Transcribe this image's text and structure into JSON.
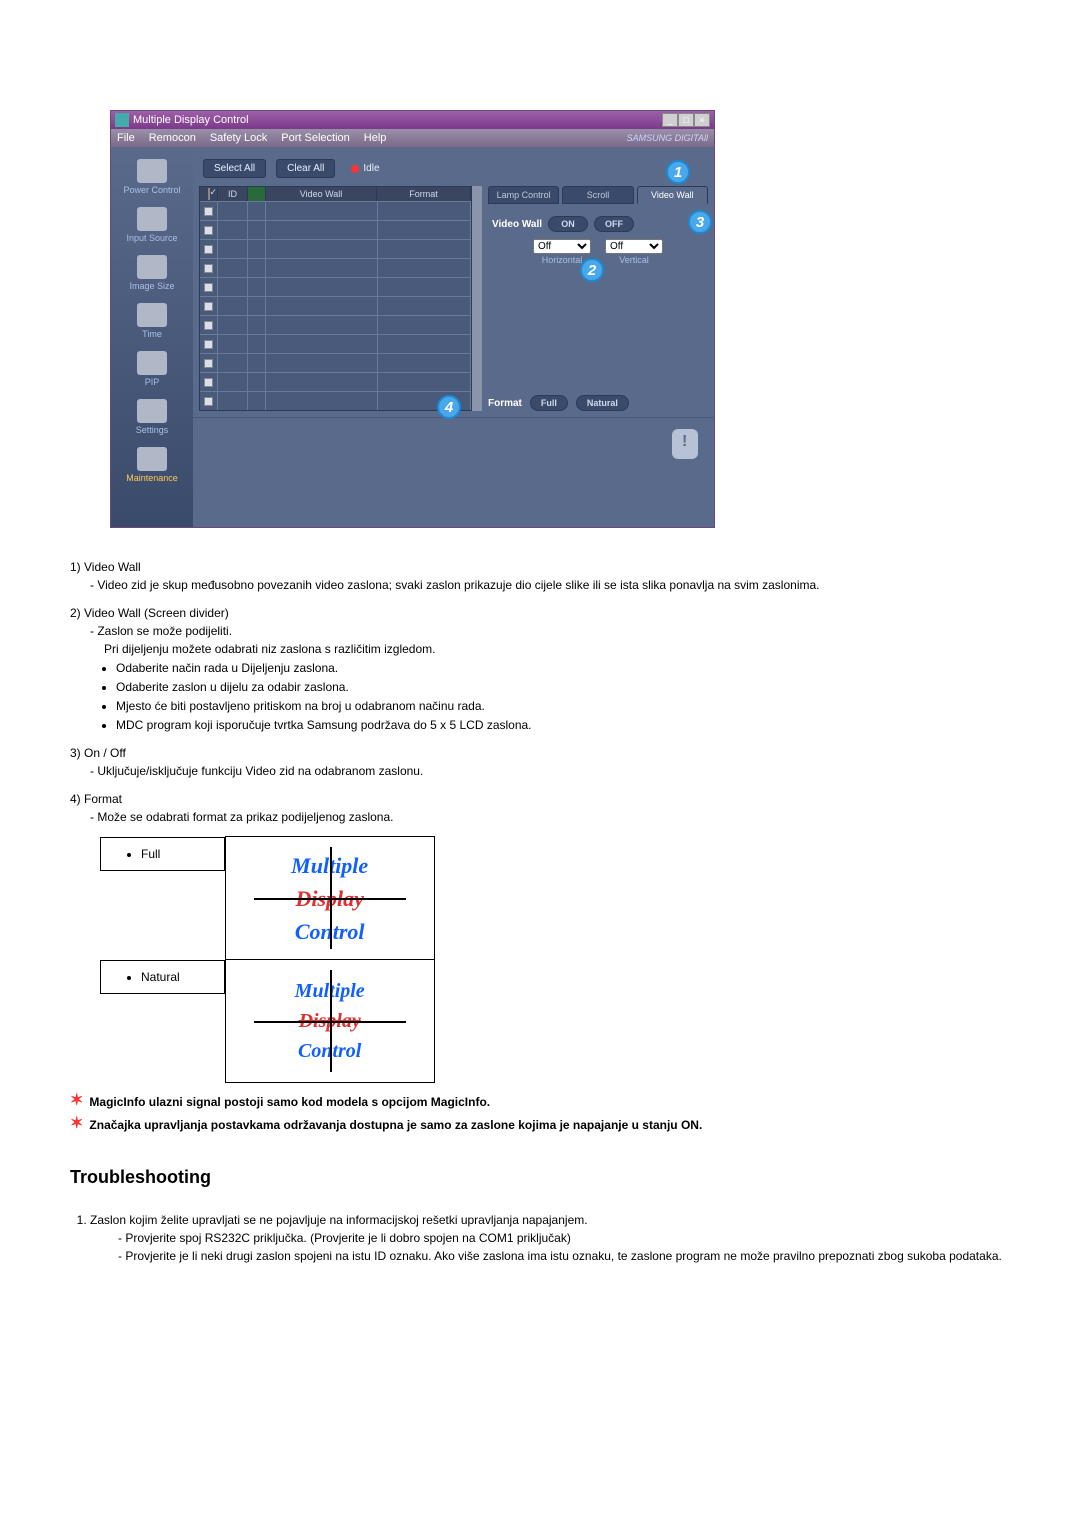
{
  "window": {
    "title": "Multiple Display Control",
    "menus": [
      "File",
      "Remocon",
      "Safety Lock",
      "Port Selection",
      "Help"
    ],
    "brand": "SAMSUNG DIGITAll"
  },
  "sidebar": {
    "items": [
      {
        "label": "Power Control"
      },
      {
        "label": "Input Source"
      },
      {
        "label": "Image Size"
      },
      {
        "label": "Time"
      },
      {
        "label": "PIP"
      },
      {
        "label": "Settings"
      },
      {
        "label": "Maintenance",
        "active": true
      }
    ]
  },
  "toolbar": {
    "select_all": "Select All",
    "clear_all": "Clear All",
    "idle": "Idle"
  },
  "grid": {
    "cols": {
      "id": "ID",
      "videowall": "Video Wall",
      "format": "Format"
    },
    "row_count": 11
  },
  "tabs": [
    {
      "label": "Lamp Control"
    },
    {
      "label": "Scroll"
    },
    {
      "label": "Video Wall",
      "active": true
    }
  ],
  "videowall": {
    "label": "Video Wall",
    "on": "ON",
    "off": "OFF",
    "horiz_label": "Horizontal",
    "vert_label": "Vertical",
    "horiz_value": "Off",
    "vert_value": "Off"
  },
  "format_panel": {
    "label": "Format",
    "full": "Full",
    "natural": "Natural"
  },
  "callouts": {
    "c1": "1",
    "c2": "2",
    "c3": "3",
    "c4": "4"
  },
  "doc": {
    "i1": {
      "num": "1)",
      "title": "Video Wall",
      "desc": "- Video zid je skup međusobno povezanih video zaslona; svaki zaslon prikazuje dio cijele slike ili se ista slika ponavlja na svim zaslonima."
    },
    "i2": {
      "num": "2)",
      "title": "Video Wall (Screen divider)",
      "l1": "- Zaslon se može podijeliti.",
      "l2": "Pri dijeljenju možete odabrati niz zaslona s različitim izgledom.",
      "b1": "Odaberite način rada u Dijeljenju zaslona.",
      "b2": "Odaberite zaslon u dijelu za odabir zaslona.",
      "b3": "Mjesto će biti postavljeno pritiskom na broj u odabranom načinu rada.",
      "b4": "MDC program koji isporučuje tvrtka Samsung podržava do 5 x 5 LCD zaslona."
    },
    "i3": {
      "num": "3)",
      "title": "On / Off",
      "desc": "- Uključuje/isključuje funkciju Video zid na odabranom zaslonu."
    },
    "i4": {
      "num": "4)",
      "title": "Format",
      "desc": "- Može se odabrati format za prikaz podijeljenog zaslona."
    },
    "fmt_full": "Full",
    "fmt_nat": "Natural",
    "mdc1": "Multiple",
    "mdc2": "Display",
    "mdc3": "Control",
    "note1": "MagicInfo ulazni signal postoji samo kod modela s opcijom MagicInfo.",
    "note2": "Značajka upravljanja postavkama održavanja dostupna je samo za zaslone kojima je napajanje u stanju ON."
  },
  "troubleshooting": {
    "heading": "Troubleshooting",
    "q1": "Zaslon kojim želite upravljati se ne pojavljuje na informacijskoj rešetki upravljanja napajanjem.",
    "a1": "- Provjerite spoj RS232C priključka. (Provjerite je li dobro spojen na COM1 priključak)",
    "a2": "- Provjerite je li neki drugi zaslon spojeni na istu ID oznaku. Ako više zaslona ima istu oznaku, te zaslone program ne može pravilno prepoznati zbog sukoba podataka."
  }
}
